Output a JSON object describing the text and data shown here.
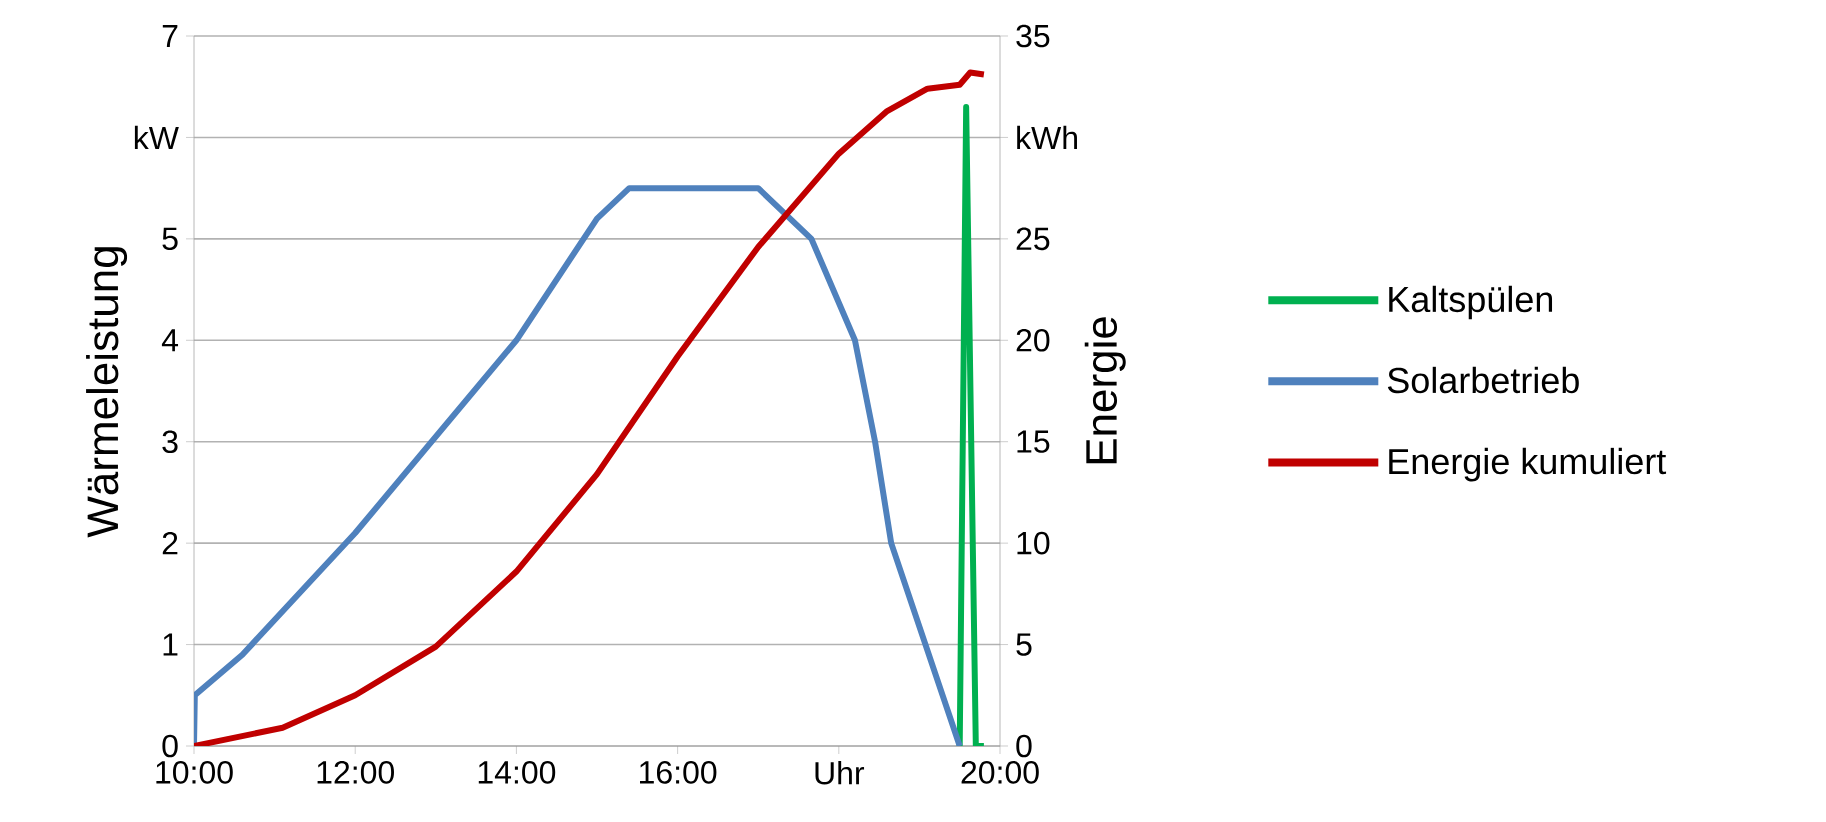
{
  "chart_data": {
    "type": "line",
    "xlabel": null,
    "ylabel": "Wärmeleistung",
    "y2label": "Energie",
    "xlim": [
      10,
      20
    ],
    "xticks": [
      {
        "value": 10,
        "label": "10:00"
      },
      {
        "value": 12,
        "label": "12:00"
      },
      {
        "value": 14,
        "label": "14:00"
      },
      {
        "value": 16,
        "label": "16:00"
      },
      {
        "value": 18,
        "label": "Uhr"
      },
      {
        "value": 20,
        "label": "20:00"
      }
    ],
    "ylim": [
      0,
      7
    ],
    "yticks": [
      0,
      1,
      2,
      3,
      4,
      5,
      {
        "value": 6,
        "label": "kW"
      },
      7
    ],
    "y2lim": [
      0,
      35
    ],
    "y2ticks": [
      0,
      5,
      10,
      15,
      20,
      25,
      {
        "value": 30,
        "label": "kWh"
      },
      35
    ],
    "grid": "y",
    "legend": "right",
    "series": [
      {
        "name": "Kaltspülen",
        "color": "#00b050",
        "x": [
          19.5,
          19.58,
          19.7,
          19.8
        ],
        "values": [
          0,
          6.3,
          0,
          0
        ]
      },
      {
        "name": "Solarbetrieb",
        "color": "#4f81bd",
        "x": [
          10,
          10.01,
          10.6,
          12,
          14,
          15,
          15.4,
          17,
          17.66,
          18.2,
          18.45,
          18.65,
          19.5
        ],
        "values": [
          0,
          0.5,
          0.9,
          2.1,
          4.0,
          5.2,
          5.5,
          5.5,
          5.0,
          4.0,
          3.0,
          2.0,
          0
        ]
      },
      {
        "name": "Energie kumuliert",
        "color": "#c00000",
        "axis": "y2",
        "x": [
          10,
          11.1,
          12,
          13,
          14,
          15,
          16,
          17,
          18,
          18.6,
          19.1,
          19.5,
          19.63,
          19.8
        ],
        "values": [
          0,
          0.9,
          2.5,
          4.9,
          8.6,
          13.4,
          19.2,
          24.6,
          29.2,
          31.3,
          32.4,
          32.6,
          33.2,
          33.1
        ]
      }
    ]
  }
}
